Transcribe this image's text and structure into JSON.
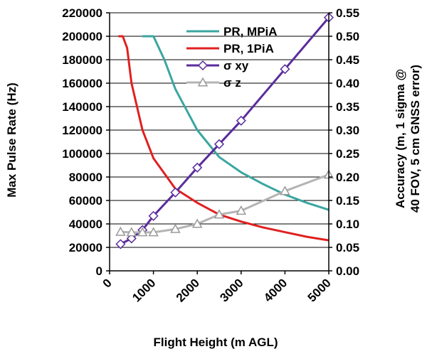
{
  "chart_data": {
    "type": "line",
    "xlabel": "Flight Height (m AGL)",
    "ylabel_left": "Max Pulse Rate (Hz)",
    "ylabel_right": [
      "Accuracy (m, 1 sigma @",
      "40 FOV, 5 cm GNSS error)"
    ],
    "xlim": [
      0,
      5000
    ],
    "ylim_left": [
      0,
      220000
    ],
    "ylim_right": [
      0.0,
      0.55
    ],
    "x_ticks": [
      "0",
      "1000",
      "2000",
      "3000",
      "4000",
      "5000"
    ],
    "y_left_ticks": [
      "0",
      "20000",
      "40000",
      "60000",
      "80000",
      "100000",
      "120000",
      "140000",
      "160000",
      "180000",
      "200000",
      "220000"
    ],
    "y_right_ticks": [
      "0.00",
      "0.05",
      "0.10",
      "0.15",
      "0.20",
      "0.25",
      "0.30",
      "0.35",
      "0.40",
      "0.45",
      "0.50",
      "0.55"
    ],
    "grid": "horizontal",
    "legend_position": "top-center",
    "series": [
      {
        "name": "PR, MPiA",
        "axis": "left",
        "color": "#3aa6a0",
        "marker": "none",
        "x": [
          750,
          1000,
          1250,
          1500,
          2000,
          2500,
          3000,
          3500,
          4000,
          4500,
          5000
        ],
        "y": [
          200000,
          200000,
          180000,
          155000,
          120000,
          97000,
          84000,
          74000,
          65000,
          58000,
          52000
        ]
      },
      {
        "name": "PR, 1PiA",
        "axis": "left",
        "color": "#e02020",
        "marker": "none",
        "x": [
          200,
          300,
          400,
          500,
          750,
          1000,
          1500,
          2000,
          2500,
          3000,
          3500,
          4000,
          4500,
          5000
        ],
        "y": [
          200000,
          200000,
          190000,
          160000,
          120000,
          96000,
          70000,
          58000,
          48000,
          42000,
          37000,
          33000,
          29000,
          26000
        ]
      },
      {
        "name": "σ xy",
        "axis": "right",
        "color": "#5a2d9c",
        "marker": "diamond",
        "x": [
          250,
          500,
          750,
          1000,
          1500,
          2000,
          2500,
          3000,
          4000,
          5000
        ],
        "y": [
          0.057,
          0.069,
          0.087,
          0.117,
          0.167,
          0.22,
          0.27,
          0.32,
          0.43,
          0.54
        ]
      },
      {
        "name": "σ z",
        "axis": "right",
        "color": "#b4b4b4",
        "marker": "triangle",
        "x": [
          250,
          500,
          750,
          1000,
          1500,
          2000,
          2500,
          3000,
          4000,
          5000
        ],
        "y": [
          0.083,
          0.082,
          0.082,
          0.082,
          0.089,
          0.1,
          0.12,
          0.128,
          0.17,
          0.205
        ]
      }
    ]
  }
}
